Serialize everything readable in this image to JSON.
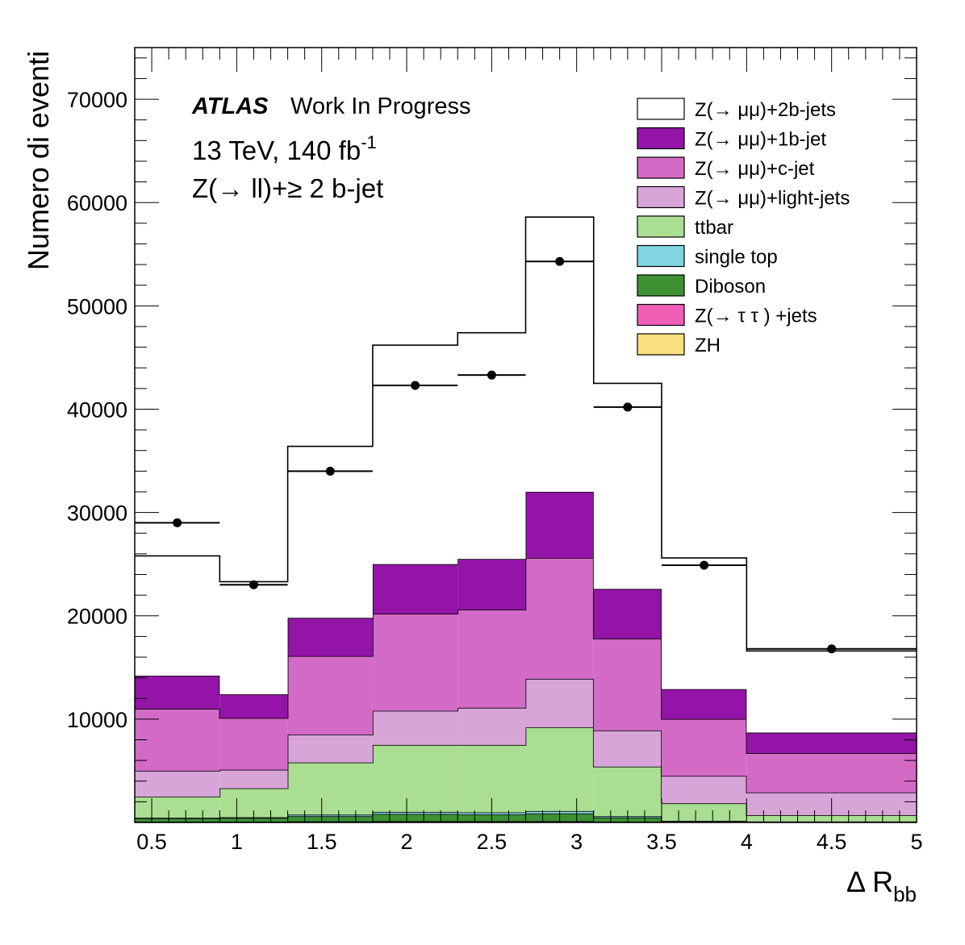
{
  "chart_data": {
    "type": "bar",
    "stacked": true,
    "xlabel_main": "Δ R",
    "xlabel_sub": "bb",
    "ylabel": "Numero di eventi",
    "xlim": [
      0.4,
      5.0
    ],
    "ylim": [
      0,
      75000
    ],
    "x_ticks": [
      "0.5",
      "1",
      "1.5",
      "2",
      "2.5",
      "3",
      "3.5",
      "4",
      "4.5",
      "5"
    ],
    "y_ticks": [
      "10000",
      "20000",
      "30000",
      "40000",
      "50000",
      "60000",
      "70000"
    ],
    "annotation": {
      "atlas": "ATLAS",
      "status": "Work In Progress",
      "lumi_main": "13 TeV, 140 fb",
      "lumi_sup": "-1",
      "selection": "Z(→ ll)+≥ 2 b-jet"
    },
    "bin_edges": [
      0.4,
      0.9,
      1.3,
      1.8,
      2.3,
      2.7,
      3.1,
      3.5,
      4.0,
      5.0
    ],
    "series": [
      {
        "name": "ZH",
        "color": "#f9e07f",
        "values": [
          50,
          50,
          60,
          70,
          70,
          70,
          50,
          30,
          20
        ]
      },
      {
        "name": "Z(→ τ τ ) +jets",
        "color": "#ef5fb6",
        "values": [
          30,
          30,
          40,
          50,
          50,
          50,
          30,
          20,
          10
        ]
      },
      {
        "name": "Diboson",
        "color": "#3d9133",
        "values": [
          300,
          350,
          500,
          700,
          650,
          750,
          400,
          80,
          50
        ]
      },
      {
        "name": "single top",
        "color": "#80d5e0",
        "values": [
          70,
          70,
          150,
          200,
          200,
          230,
          120,
          20,
          10
        ]
      },
      {
        "name": "ttbar",
        "color": "#aade92",
        "values": [
          2050,
          2800,
          5050,
          6480,
          6530,
          8100,
          4800,
          1700,
          610
        ]
      },
      {
        "name": "Z(→ μμ)+light-jets",
        "color": "#d8a5d8",
        "values": [
          2500,
          1800,
          2700,
          3300,
          3600,
          4700,
          3500,
          2650,
          2200
        ]
      },
      {
        "name": "Z(→ μμ)+c-jet",
        "color": "#d36bc6",
        "values": [
          6000,
          5000,
          7600,
          9400,
          9500,
          11700,
          8900,
          5500,
          3800
        ]
      },
      {
        "name": "Z(→ μμ)+1b-jet",
        "color": "#9314a6",
        "values": [
          3200,
          2300,
          3700,
          4800,
          4900,
          6400,
          4800,
          2900,
          2000
        ]
      },
      {
        "name": "Z(→ μμ)+2b-jets",
        "color": "#ffffff",
        "values": [
          11600,
          10900,
          16600,
          21200,
          21900,
          26600,
          19900,
          12700,
          7900
        ]
      }
    ],
    "legend_order": [
      "Z(→ μμ)+2b-jets",
      "Z(→ μμ)+1b-jet",
      "Z(→ μμ)+c-jet",
      "Z(→ μμ)+light-jets",
      "ttbar",
      "single top",
      "Diboson",
      "Z(→ τ τ ) +jets",
      "ZH"
    ],
    "legend_placement": "top-right",
    "data_points": {
      "x": [
        0.65,
        1.1,
        1.55,
        2.05,
        2.5,
        2.9,
        3.3,
        3.75,
        4.5
      ],
      "y": [
        29000,
        23000,
        34000,
        42300,
        43300,
        54300,
        40200,
        24900,
        16800
      ]
    }
  }
}
